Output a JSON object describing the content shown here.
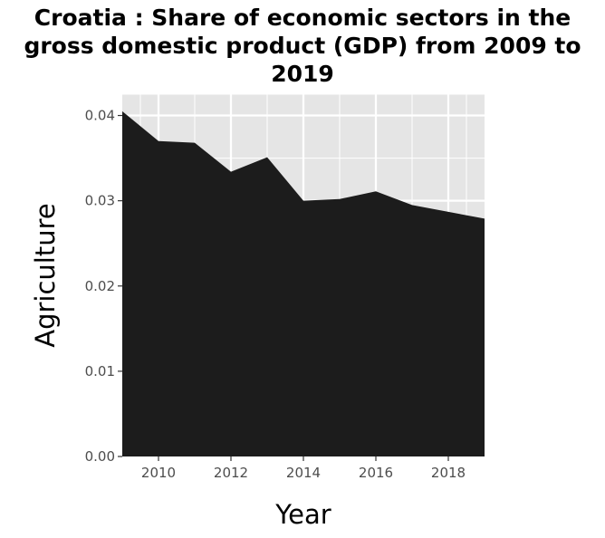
{
  "chart_data": {
    "type": "area",
    "title": "Croatia : Share of economic sectors in the gross domestic product (GDP) from 2009 to 2019",
    "xlabel": "Year",
    "ylabel": "Agriculture",
    "x": [
      2009,
      2010,
      2011,
      2012,
      2013,
      2014,
      2015,
      2016,
      2017,
      2018,
      2019
    ],
    "series": [
      {
        "values": [
          0.0405,
          0.037,
          0.0368,
          0.0334,
          0.0351,
          0.03,
          0.0302,
          0.0311,
          0.0295,
          0.0287,
          0.0279
        ]
      }
    ],
    "xlim": [
      2009,
      2019
    ],
    "ylim": [
      0,
      0.0425
    ],
    "xticks": [
      2010,
      2012,
      2014,
      2016,
      2018
    ],
    "xtick_labels": [
      "2010",
      "2012",
      "2014",
      "2016",
      "2018"
    ],
    "yticks": [
      0,
      0.01,
      0.02,
      0.03,
      0.04
    ],
    "ytick_labels": [
      "0.00",
      "0.01",
      "0.02",
      "0.03",
      "0.04"
    ],
    "grid": true,
    "colors": {
      "fill": "#1c1c1c",
      "panel": "#e5e5e5",
      "grid": "#ffffff"
    }
  }
}
